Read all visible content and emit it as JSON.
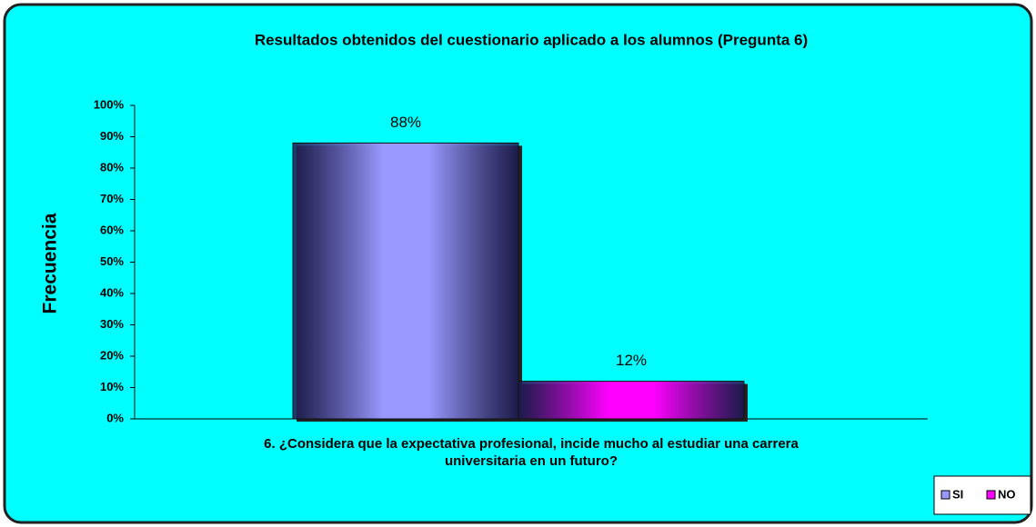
{
  "chart_data": {
    "type": "bar",
    "title": "Resultados obtenidos del cuestionario aplicado a los alumnos (Pregunta 6)",
    "y_label": "Frecuencia",
    "categories": [
      "6. ¿Considera que la expectativa profesional, incide mucho al estudiar una carrera universitaria en un futuro?"
    ],
    "series": [
      {
        "name": "SI",
        "color": "#9999ff",
        "values": [
          88
        ],
        "value_labels": [
          "88%"
        ]
      },
      {
        "name": "NO",
        "color": "#ff00ff",
        "values": [
          12
        ],
        "value_labels": [
          "12%"
        ]
      }
    ],
    "ylim": [
      0,
      100
    ],
    "yticks": [
      {
        "value": 0,
        "label": "0%"
      },
      {
        "value": 10,
        "label": "10%"
      },
      {
        "value": 20,
        "label": "20%"
      },
      {
        "value": 30,
        "label": "30%"
      },
      {
        "value": 40,
        "label": "40%"
      },
      {
        "value": 50,
        "label": "50%"
      },
      {
        "value": 60,
        "label": "60%"
      },
      {
        "value": 70,
        "label": "70%"
      },
      {
        "value": 80,
        "label": "80%"
      },
      {
        "value": 90,
        "label": "90%"
      },
      {
        "value": 100,
        "label": "100%"
      }
    ],
    "grid": false,
    "legend": "bottom-right"
  }
}
